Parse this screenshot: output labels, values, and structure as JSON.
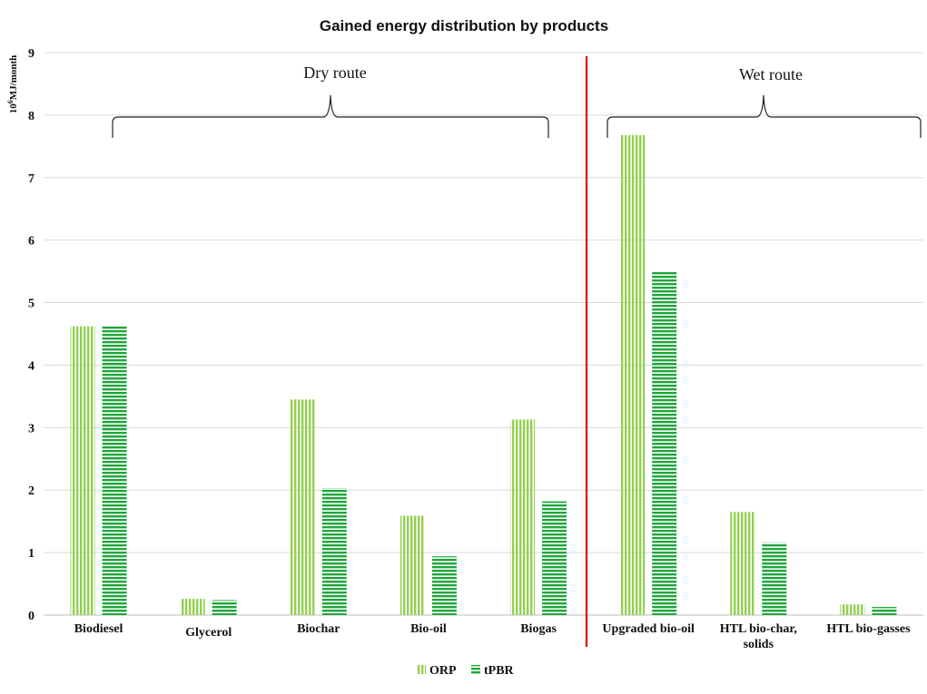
{
  "chart_data": {
    "type": "bar",
    "title": "Gained energy distribution by products",
    "ylabel_base": "10",
    "ylabel_exp": "6",
    "ylabel_unit": "MJ/month",
    "ylim": [
      0,
      9
    ],
    "yticks": [
      "0",
      "1",
      "2",
      "3",
      "4",
      "5",
      "6",
      "7",
      "8",
      "9"
    ],
    "grid": true,
    "legend_position": "bottom",
    "categories": [
      [
        "Biodiesel"
      ],
      [
        "Glycerol"
      ],
      [
        "Biochar"
      ],
      [
        "Bio-oil"
      ],
      [
        "Biogas"
      ],
      [
        "Upgraded bio-oil"
      ],
      [
        "HTL bio-char,",
        "solids"
      ],
      [
        "HTL bio-gasses"
      ]
    ],
    "series": [
      {
        "name": "ORP",
        "color": "#92d050",
        "pattern": "vertical-stripes",
        "values": [
          4.62,
          0.26,
          3.45,
          1.59,
          3.13,
          7.68,
          1.65,
          0.17
        ]
      },
      {
        "name": "tPBR",
        "color": "#1ea63a",
        "pattern": "horizontal-stripes",
        "values": [
          4.63,
          0.24,
          2.03,
          0.94,
          1.82,
          5.49,
          1.16,
          0.13
        ]
      }
    ],
    "annotations": {
      "dry_route": "Dry route",
      "wet_route": "Wet route",
      "divider_color": "#e00000"
    }
  }
}
